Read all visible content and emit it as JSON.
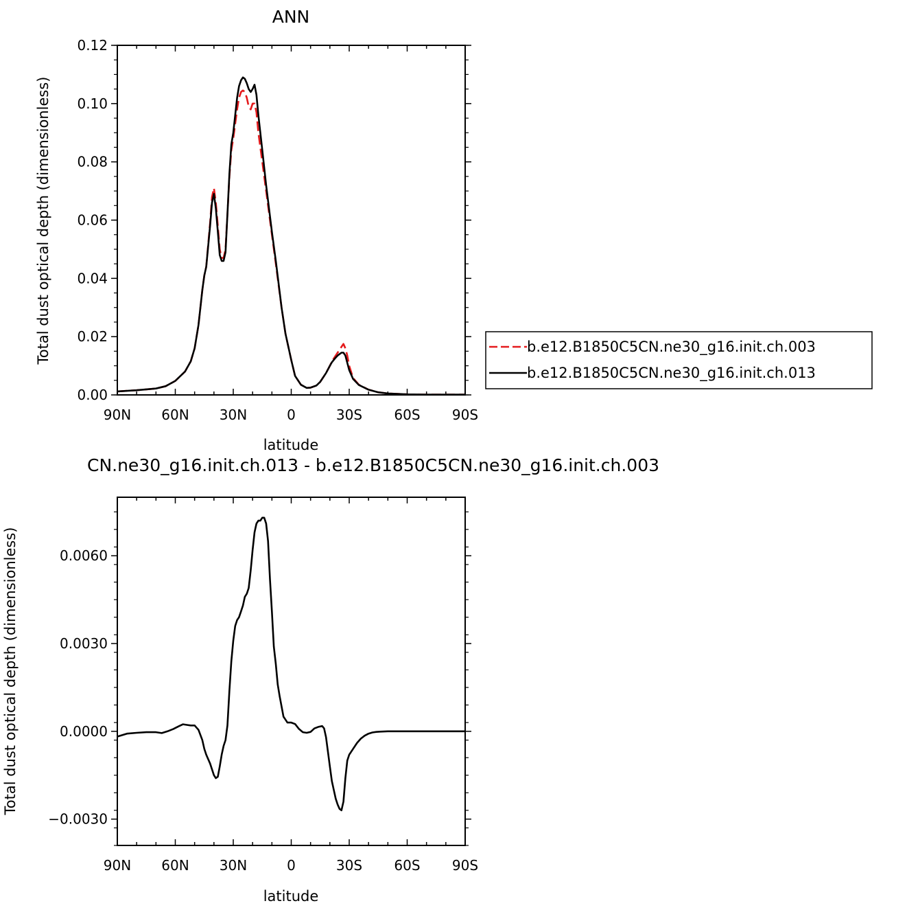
{
  "chart_data": [
    {
      "type": "line",
      "title": "ANN",
      "xlabel": "latitude",
      "ylabel": "Total dust optical depth (dimensionless)",
      "xlim": [
        -90,
        90
      ],
      "ylim": [
        0,
        0.12
      ],
      "x_tick_labels": [
        "90N",
        "60N",
        "30N",
        "0",
        "30S",
        "60S",
        "90S"
      ],
      "y_tick_labels": [
        "0.00",
        "0.02",
        "0.04",
        "0.06",
        "0.08",
        "0.10",
        "0.12"
      ],
      "legend_position": "right",
      "series": [
        {
          "name": "b.e12.B1850C5CN.ne30_g16.init.ch.003",
          "color": "#e41a1c",
          "dash": "dashed",
          "x": [
            -90,
            -80,
            -70,
            -65,
            -60,
            -55,
            -52,
            -50,
            -48,
            -46,
            -45,
            -44,
            -42,
            -41,
            -40,
            -39,
            -38,
            -37,
            -36,
            -35,
            -34,
            -33,
            -32,
            -31,
            -30,
            -28,
            -27,
            -26,
            -25,
            -24,
            -23,
            -22,
            -21,
            -20,
            -19,
            -18,
            -17,
            -15,
            -13,
            -10,
            -8,
            -5,
            -3,
            0,
            2,
            5,
            8,
            10,
            13,
            15,
            18,
            20,
            21,
            22,
            23,
            24,
            25,
            26,
            27,
            28,
            29,
            30,
            32,
            35,
            40,
            45,
            50,
            60,
            70,
            90
          ],
          "y": [
            0.0012,
            0.0016,
            0.0022,
            0.003,
            0.0048,
            0.008,
            0.0115,
            0.016,
            0.024,
            0.036,
            0.041,
            0.044,
            0.059,
            0.068,
            0.071,
            0.066,
            0.058,
            0.05,
            0.047,
            0.047,
            0.05,
            0.062,
            0.075,
            0.084,
            0.088,
            0.098,
            0.102,
            0.104,
            0.1045,
            0.104,
            0.102,
            0.099,
            0.098,
            0.1,
            0.1,
            0.097,
            0.09,
            0.08,
            0.07,
            0.055,
            0.045,
            0.03,
            0.021,
            0.012,
            0.0065,
            0.0035,
            0.0024,
            0.0025,
            0.0032,
            0.0045,
            0.0075,
            0.01,
            0.0115,
            0.0125,
            0.0135,
            0.0145,
            0.0155,
            0.0165,
            0.0175,
            0.016,
            0.0135,
            0.01,
            0.0058,
            0.0035,
            0.0018,
            0.0009,
            0.0005,
            0.0002,
            0.0001,
            0.0001
          ]
        },
        {
          "name": "b.e12.B1850C5CN.ne30_g16.init.ch.013",
          "color": "#000000",
          "dash": "solid",
          "x": [
            -90,
            -80,
            -70,
            -65,
            -60,
            -55,
            -52,
            -50,
            -48,
            -46,
            -45,
            -44,
            -42,
            -41,
            -40,
            -39,
            -38,
            -37,
            -36,
            -35,
            -34,
            -33,
            -32,
            -31,
            -30,
            -28,
            -27,
            -26,
            -25,
            -24,
            -23,
            -22,
            -21,
            -20,
            -19,
            -18,
            -17,
            -15,
            -13,
            -10,
            -8,
            -5,
            -3,
            0,
            2,
            5,
            8,
            10,
            13,
            15,
            18,
            20,
            21,
            22,
            23,
            24,
            25,
            26,
            27,
            28,
            29,
            30,
            32,
            35,
            40,
            45,
            50,
            60,
            70,
            90
          ],
          "y": [
            0.0012,
            0.0016,
            0.0022,
            0.003,
            0.0048,
            0.008,
            0.0115,
            0.016,
            0.024,
            0.036,
            0.041,
            0.044,
            0.058,
            0.066,
            0.069,
            0.064,
            0.056,
            0.048,
            0.046,
            0.046,
            0.049,
            0.062,
            0.076,
            0.086,
            0.09,
            0.102,
            0.106,
            0.108,
            0.109,
            0.1085,
            0.107,
            0.105,
            0.104,
            0.105,
            0.1065,
            0.103,
            0.096,
            0.084,
            0.072,
            0.056,
            0.046,
            0.03,
            0.021,
            0.012,
            0.0065,
            0.0035,
            0.0024,
            0.0025,
            0.0032,
            0.0045,
            0.0075,
            0.01,
            0.0112,
            0.012,
            0.0128,
            0.0135,
            0.014,
            0.0145,
            0.0145,
            0.0135,
            0.011,
            0.0085,
            0.0055,
            0.0034,
            0.0018,
            0.0009,
            0.0005,
            0.0002,
            0.0001,
            0.0001
          ]
        }
      ]
    },
    {
      "type": "line",
      "title": "CN.ne30_g16.init.ch.013 - b.e12.B1850C5CN.ne30_g16.init.ch.003",
      "xlabel": "latitude",
      "ylabel": "Total dust optical depth (dimensionless)",
      "xlim": [
        -90,
        90
      ],
      "ylim": [
        -0.0039,
        0.008
      ],
      "x_tick_labels": [
        "90N",
        "60N",
        "30N",
        "0",
        "30S",
        "60S",
        "90S"
      ],
      "y_ticks": [
        -0.003,
        0.0,
        0.003,
        0.006
      ],
      "y_tick_labels": [
        "−0.0030",
        "0.0000",
        "0.0030",
        "0.0060"
      ],
      "series": [
        {
          "name": "",
          "color": "#000000",
          "dash": "solid",
          "x": [
            -90,
            -85,
            -80,
            -75,
            -70,
            -67,
            -64,
            -61,
            -58,
            -56,
            -54,
            -52,
            -50,
            -48,
            -46,
            -45,
            -44,
            -42,
            -40,
            -39,
            -38,
            -37,
            -36,
            -35,
            -34,
            -33,
            -32,
            -31,
            -30,
            -29,
            -28,
            -27,
            -26,
            -25,
            -24,
            -23,
            -22,
            -21,
            -20,
            -19,
            -18,
            -17,
            -16,
            -15,
            -14,
            -13,
            -12,
            -11,
            -10,
            -9,
            -8,
            -7,
            -6,
            -5,
            -4,
            -3,
            -2,
            -1,
            0,
            2,
            4,
            6,
            8,
            10,
            12,
            14,
            16,
            17,
            18,
            19,
            20,
            21,
            22,
            23,
            24,
            25,
            26,
            27,
            28,
            29,
            30,
            31,
            32,
            34,
            36,
            38,
            40,
            42,
            44,
            46,
            50,
            55,
            60,
            70,
            80,
            90
          ],
          "y": [
            -0.00018,
            -8e-05,
            -5e-05,
            -3e-05,
            -3e-05,
            -6e-05,
            0.0,
            8e-05,
            0.00018,
            0.00024,
            0.00022,
            0.0002,
            0.0002,
            5e-05,
            -0.0003,
            -0.0006,
            -0.0008,
            -0.0011,
            -0.0015,
            -0.0016,
            -0.00155,
            -0.0012,
            -0.0008,
            -0.0005,
            -0.0003,
            0.0002,
            0.0014,
            0.0024,
            0.0031,
            0.0036,
            0.0038,
            0.0039,
            0.0041,
            0.0043,
            0.0046,
            0.0047,
            0.0049,
            0.0055,
            0.0062,
            0.0068,
            0.0071,
            0.0072,
            0.0072,
            0.0073,
            0.0073,
            0.0071,
            0.0065,
            0.0052,
            0.0041,
            0.0029,
            0.0023,
            0.0016,
            0.0012,
            0.00085,
            0.0005,
            0.0004,
            0.0003,
            0.0003,
            0.0003,
            0.00025,
            8e-05,
            -3e-05,
            -5e-05,
            -2e-05,
            0.0001,
            0.00015,
            0.00018,
            0.0001,
            -0.0002,
            -0.0007,
            -0.0012,
            -0.0017,
            -0.002,
            -0.0023,
            -0.0025,
            -0.00265,
            -0.0027,
            -0.0024,
            -0.0016,
            -0.001,
            -0.0008,
            -0.0007,
            -0.0006,
            -0.0004,
            -0.00025,
            -0.00015,
            -8e-05,
            -4e-05,
            -2e-05,
            -1e-05,
            0.0,
            0.0,
            0.0,
            0.0,
            0.0,
            0.0
          ]
        }
      ]
    }
  ]
}
